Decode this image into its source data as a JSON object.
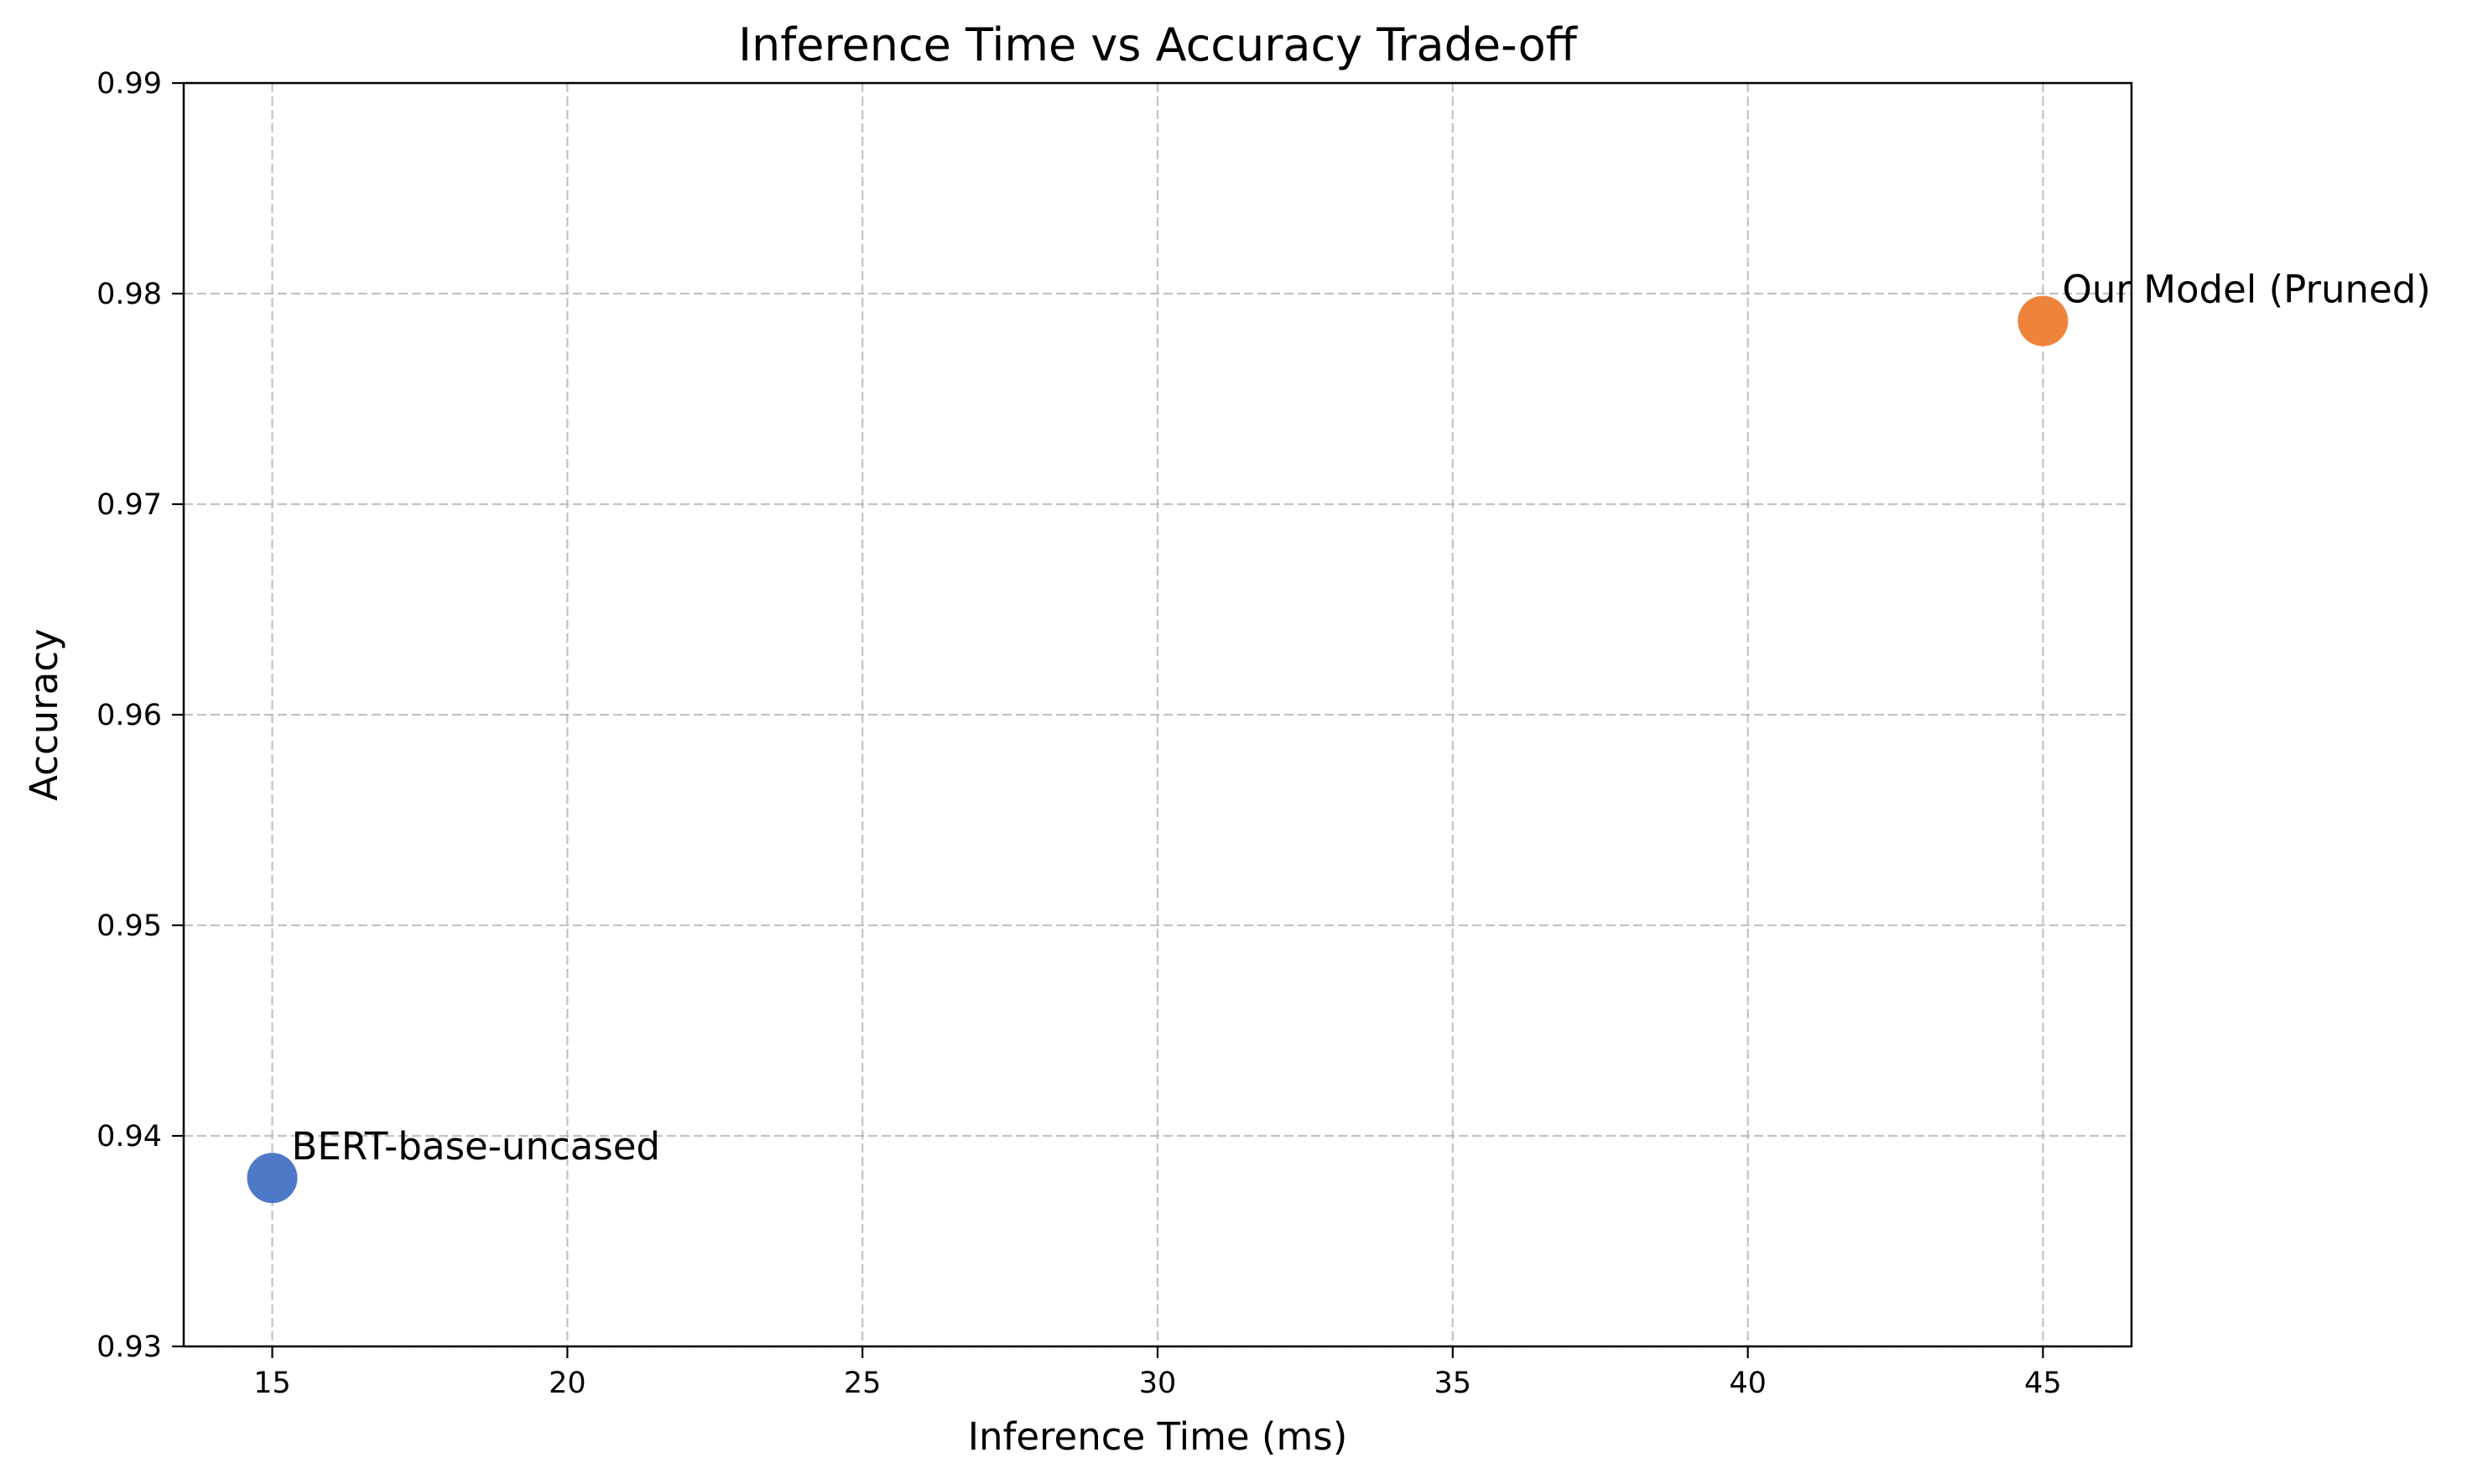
{
  "chart_data": {
    "type": "scatter",
    "title": "Inference Time vs Accuracy Trade-off",
    "xlabel": "Inference Time (ms)",
    "ylabel": "Accuracy",
    "xlim": [
      13.5,
      46.5
    ],
    "ylim": [
      0.93,
      0.99
    ],
    "xticks": [
      15,
      20,
      25,
      30,
      35,
      40,
      45
    ],
    "yticks": [
      0.93,
      0.94,
      0.95,
      0.96,
      0.97,
      0.98,
      0.99
    ],
    "xtick_labels": [
      "15",
      "20",
      "25",
      "30",
      "35",
      "40",
      "45"
    ],
    "ytick_labels": [
      "0.93",
      "0.94",
      "0.95",
      "0.96",
      "0.97",
      "0.98",
      "0.99"
    ],
    "grid": true,
    "legend": "none",
    "points": [
      {
        "label": "BERT-base-uncased",
        "x": 15,
        "y": 0.938,
        "color": "#4472C4"
      },
      {
        "label": "Our Model (Pruned)",
        "x": 45,
        "y": 0.9787,
        "color": "#ED7D31"
      }
    ]
  }
}
